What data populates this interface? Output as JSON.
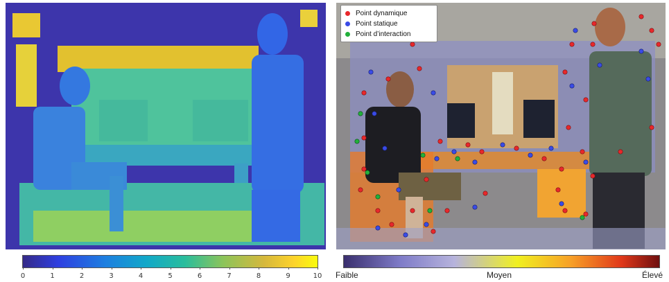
{
  "depth_colorbar": {
    "ticks": [
      "0",
      "1",
      "2",
      "3",
      "4",
      "5",
      "6",
      "7",
      "8",
      "9",
      "10"
    ]
  },
  "legend": {
    "items": [
      {
        "label": "Point dynamique",
        "color": "#e8282b"
      },
      {
        "label": "Point statique",
        "color": "#3a4be6"
      },
      {
        "label": "Point d’interaction",
        "color": "#22b03b"
      }
    ]
  },
  "confidence_colorbar": {
    "low_label": "Faible",
    "mid_label": "Moyen",
    "high_label": "Élevé"
  }
}
